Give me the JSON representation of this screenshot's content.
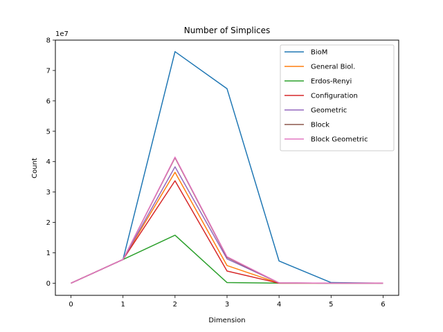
{
  "chart_data": {
    "type": "line",
    "title": "Number of Simplices",
    "xlabel": "Dimension",
    "ylabel": "Count",
    "y_offset_label": "1e7",
    "x": [
      0,
      1,
      2,
      3,
      4,
      5,
      6
    ],
    "xlim": [
      -0.3,
      6.3
    ],
    "ylim": [
      -0.4,
      8.0
    ],
    "y_scale_note": "values in units of 1e7",
    "xticks": [
      "0",
      "1",
      "2",
      "3",
      "4",
      "5",
      "6"
    ],
    "yticks": [
      "0",
      "1",
      "2",
      "3",
      "4",
      "5",
      "6",
      "7",
      "8"
    ],
    "grid": false,
    "legend_position": "top-right",
    "series": [
      {
        "name": "BioM",
        "color": "#1f77b4",
        "values": [
          0,
          0.78,
          7.62,
          6.4,
          0.73,
          0.02,
          0
        ]
      },
      {
        "name": "General Biol.",
        "color": "#ff7f0e",
        "values": [
          0,
          0.78,
          3.65,
          0.58,
          0,
          0,
          0
        ]
      },
      {
        "name": "Erdos-Renyi",
        "color": "#2ca02c",
        "values": [
          0,
          0.78,
          1.58,
          0.02,
          0,
          0,
          0
        ]
      },
      {
        "name": "Configuration",
        "color": "#d62728",
        "values": [
          0,
          0.78,
          3.37,
          0.4,
          0,
          0,
          0
        ]
      },
      {
        "name": "Geometric",
        "color": "#9467bd",
        "values": [
          0,
          0.78,
          3.83,
          0.8,
          0.01,
          0,
          0
        ]
      },
      {
        "name": "Block",
        "color": "#8c564b",
        "values": [
          0,
          0.78,
          4.13,
          0.85,
          0.01,
          0,
          0
        ]
      },
      {
        "name": "Block Geometric",
        "color": "#e377c2",
        "values": [
          0,
          0.78,
          4.15,
          0.87,
          0.01,
          0,
          0
        ]
      }
    ]
  }
}
